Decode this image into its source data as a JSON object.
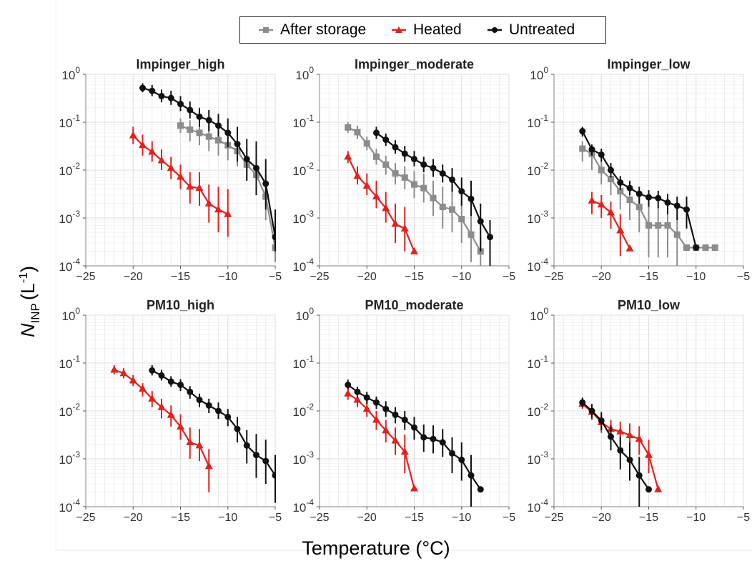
{
  "legend": {
    "items": [
      {
        "label": "After storage",
        "color": "#8c8c8c",
        "marker": "square"
      },
      {
        "label": "Heated",
        "color": "#e0211d",
        "marker": "triangle"
      },
      {
        "label": "Untreated",
        "color": "#111111",
        "marker": "circle"
      }
    ]
  },
  "axes": {
    "ylabel_main": "N",
    "ylabel_sub": "INP",
    "ylabel_unit": "(L",
    "ylabel_exp": "-1",
    "ylabel_close": ")",
    "xlabel": "Temperature (°C)"
  },
  "chart_data": [
    {
      "type": "line",
      "title": "Impinger_high",
      "xlim": [
        -25,
        -5
      ],
      "ylim_log10": [
        -4,
        0
      ],
      "yscale": "log",
      "xticks": [
        -25,
        -20,
        -15,
        -10,
        -5
      ],
      "grid": true,
      "series": [
        {
          "name": "After storage",
          "x": [
            -15,
            -14,
            -13,
            -12,
            -11,
            -10,
            -9,
            -8,
            -7,
            -6,
            -5
          ],
          "y": [
            0.085,
            0.07,
            0.06,
            0.05,
            0.042,
            0.033,
            0.025,
            0.013,
            0.008,
            0.0028,
            0.00024
          ],
          "err_lo": [
            0.06,
            0.04,
            0.033,
            0.025,
            0.02,
            0.016,
            0.012,
            0.006,
            0.003,
            0.0009,
            0.00012
          ],
          "err_hi": [
            0.12,
            0.11,
            0.1,
            0.09,
            0.08,
            0.065,
            0.05,
            0.03,
            0.02,
            0.008,
            0.0005
          ]
        },
        {
          "name": "Heated",
          "x": [
            -20,
            -19,
            -18,
            -17,
            -16,
            -15,
            -14,
            -13,
            -12,
            -11,
            -10
          ],
          "y": [
            0.053,
            0.033,
            0.024,
            0.016,
            0.011,
            0.0072,
            0.0045,
            0.0042,
            0.002,
            0.0015,
            0.0012
          ],
          "err_lo": [
            0.035,
            0.02,
            0.015,
            0.01,
            0.0065,
            0.004,
            0.002,
            0.0018,
            0.0008,
            0.0005,
            0.0004
          ],
          "err_hi": [
            0.08,
            0.055,
            0.04,
            0.027,
            0.019,
            0.013,
            0.009,
            0.009,
            0.005,
            0.0045,
            0.004
          ]
        },
        {
          "name": "Untreated",
          "x": [
            -19,
            -18,
            -17,
            -16,
            -15,
            -14,
            -13,
            -12,
            -11,
            -10,
            -9,
            -8,
            -7,
            -6,
            -5
          ],
          "y": [
            0.52,
            0.45,
            0.35,
            0.32,
            0.24,
            0.18,
            0.13,
            0.11,
            0.085,
            0.06,
            0.035,
            0.017,
            0.011,
            0.0052,
            0.0004
          ],
          "err_lo": [
            0.42,
            0.35,
            0.26,
            0.23,
            0.17,
            0.12,
            0.08,
            0.065,
            0.05,
            0.03,
            0.015,
            0.006,
            0.003,
            0.0015,
            0.0002
          ],
          "err_hi": [
            0.65,
            0.6,
            0.48,
            0.45,
            0.35,
            0.27,
            0.2,
            0.18,
            0.15,
            0.12,
            0.08,
            0.045,
            0.04,
            0.017,
            0.0015
          ]
        }
      ]
    },
    {
      "type": "line",
      "title": "Impinger_moderate",
      "xlim": [
        -25,
        -5
      ],
      "ylim_log10": [
        -4,
        0
      ],
      "yscale": "log",
      "xticks": [
        -25,
        -20,
        -15,
        -10,
        -5
      ],
      "grid": true,
      "series": [
        {
          "name": "After storage",
          "x": [
            -22,
            -21,
            -20,
            -19,
            -18,
            -17,
            -16,
            -15,
            -14,
            -13,
            -12,
            -11,
            -10,
            -9,
            -8
          ],
          "y": [
            0.078,
            0.062,
            0.036,
            0.019,
            0.013,
            0.0085,
            0.007,
            0.005,
            0.0042,
            0.0026,
            0.0017,
            0.0015,
            0.00095,
            0.00045,
            0.0002
          ],
          "err_lo": [
            0.06,
            0.045,
            0.026,
            0.013,
            0.008,
            0.005,
            0.004,
            0.0026,
            0.0021,
            0.0011,
            0.0006,
            0.0005,
            0.0003,
            0.00012,
            0.0001
          ],
          "err_hi": [
            0.1,
            0.085,
            0.05,
            0.028,
            0.02,
            0.014,
            0.012,
            0.0095,
            0.0085,
            0.006,
            0.0045,
            0.004,
            0.003,
            0.0015,
            0.0004
          ]
        },
        {
          "name": "Heated",
          "x": [
            -22,
            -21,
            -20,
            -19,
            -18,
            -17,
            -16,
            -15
          ],
          "y": [
            0.019,
            0.0075,
            0.0047,
            0.0028,
            0.0016,
            0.00075,
            0.0006,
            0.0002
          ],
          "err_lo": [
            0.014,
            0.005,
            0.003,
            0.0016,
            0.0008,
            0.0003,
            0.0002,
            0.00018
          ],
          "err_hi": [
            0.025,
            0.012,
            0.0085,
            0.006,
            0.0035,
            0.002,
            0.0017,
            0.00022
          ]
        },
        {
          "name": "Untreated",
          "x": [
            -19,
            -18,
            -17,
            -16,
            -15,
            -14,
            -13,
            -12,
            -11,
            -10,
            -9,
            -8,
            -7
          ],
          "y": [
            0.06,
            0.043,
            0.03,
            0.022,
            0.017,
            0.013,
            0.011,
            0.0085,
            0.0063,
            0.0036,
            0.0025,
            0.00085,
            0.0004
          ],
          "err_lo": [
            0.045,
            0.032,
            0.022,
            0.015,
            0.012,
            0.009,
            0.0072,
            0.0055,
            0.0035,
            0.0018,
            0.0011,
            0.0002,
            0.0001
          ],
          "err_hi": [
            0.08,
            0.058,
            0.042,
            0.032,
            0.025,
            0.019,
            0.017,
            0.013,
            0.011,
            0.007,
            0.006,
            0.002,
            0.0009
          ]
        }
      ]
    },
    {
      "type": "line",
      "title": "Impinger_low",
      "xlim": [
        -25,
        -5
      ],
      "ylim_log10": [
        -4,
        0
      ],
      "yscale": "log",
      "xticks": [
        -25,
        -20,
        -15,
        -10,
        -5
      ],
      "grid": true,
      "series": [
        {
          "name": "After storage",
          "x": [
            -22,
            -21,
            -20,
            -19,
            -18,
            -17,
            -16,
            -15,
            -14,
            -13,
            -12,
            -11,
            -10,
            -9,
            -8
          ],
          "y": [
            0.028,
            0.022,
            0.01,
            0.0065,
            0.0036,
            0.0024,
            0.0017,
            0.0007,
            0.0007,
            0.0007,
            0.00045,
            0.00024,
            0.00024,
            0.00024,
            0.00024
          ],
          "err_lo": [
            0.015,
            0.01,
            0.005,
            0.003,
            0.0015,
            0.0009,
            0.0005,
            0.00015,
            0.00015,
            0.00015,
            0.0001,
            0.00024,
            0.00024,
            0.00024,
            0.00024
          ],
          "err_hi": [
            0.04,
            0.035,
            0.016,
            0.011,
            0.0065,
            0.0048,
            0.0036,
            0.0017,
            0.0017,
            0.0017,
            0.0012,
            0.00024,
            0.00024,
            0.00024,
            0.00024
          ]
        },
        {
          "name": "Heated",
          "x": [
            -21,
            -20,
            -19,
            -18,
            -17
          ],
          "y": [
            0.0023,
            0.0019,
            0.0013,
            0.00055,
            0.00023
          ],
          "err_lo": [
            0.0012,
            0.001,
            0.0006,
            0.00016,
            0.00021
          ],
          "err_hi": [
            0.0035,
            0.003,
            0.0022,
            0.0012,
            0.00025
          ]
        },
        {
          "name": "Untreated",
          "x": [
            -22,
            -21,
            -20,
            -19,
            -18,
            -17,
            -16,
            -15,
            -14,
            -13,
            -12,
            -11,
            -10
          ],
          "y": [
            0.065,
            0.027,
            0.021,
            0.01,
            0.0055,
            0.0042,
            0.0032,
            0.0027,
            0.0026,
            0.0021,
            0.0018,
            0.0015,
            0.00024
          ],
          "err_lo": [
            0.05,
            0.02,
            0.015,
            0.007,
            0.0039,
            0.003,
            0.002,
            0.0017,
            0.0016,
            0.0012,
            0.0009,
            0.0006,
            0.00022
          ],
          "err_hi": [
            0.08,
            0.034,
            0.028,
            0.014,
            0.0075,
            0.006,
            0.0045,
            0.0038,
            0.0037,
            0.0032,
            0.0028,
            0.0028,
            0.00026
          ]
        }
      ]
    },
    {
      "type": "line",
      "title": "PM10_high",
      "xlim": [
        -25,
        -5
      ],
      "ylim_log10": [
        -4,
        0
      ],
      "yscale": "log",
      "xticks": [
        -25,
        -20,
        -15,
        -10,
        -5
      ],
      "grid": true,
      "series": [
        {
          "name": "Heated",
          "x": [
            -22,
            -21,
            -20,
            -19,
            -18,
            -17,
            -16,
            -15,
            -14,
            -13,
            -12
          ],
          "y": [
            0.072,
            0.061,
            0.043,
            0.029,
            0.018,
            0.012,
            0.0082,
            0.0047,
            0.0022,
            0.0019,
            0.0007
          ],
          "err_lo": [
            0.058,
            0.048,
            0.033,
            0.02,
            0.012,
            0.007,
            0.0047,
            0.0025,
            0.001,
            0.0009,
            0.0002
          ],
          "err_hi": [
            0.09,
            0.078,
            0.056,
            0.038,
            0.026,
            0.018,
            0.013,
            0.0085,
            0.0045,
            0.0042,
            0.0016
          ]
        },
        {
          "name": "Untreated",
          "x": [
            -18,
            -17,
            -16,
            -15,
            -14,
            -13,
            -12,
            -11,
            -10,
            -9,
            -8,
            -7,
            -6,
            -5
          ],
          "y": [
            0.07,
            0.055,
            0.041,
            0.035,
            0.025,
            0.017,
            0.013,
            0.01,
            0.0075,
            0.0042,
            0.0019,
            0.0012,
            0.0009,
            0.00045
          ],
          "err_lo": [
            0.055,
            0.043,
            0.032,
            0.026,
            0.018,
            0.012,
            0.009,
            0.0068,
            0.0048,
            0.0022,
            0.0008,
            0.0004,
            0.0003,
            0.00012
          ],
          "err_hi": [
            0.09,
            0.072,
            0.053,
            0.046,
            0.033,
            0.023,
            0.018,
            0.015,
            0.011,
            0.0075,
            0.004,
            0.0033,
            0.0025,
            0.0012
          ]
        }
      ]
    },
    {
      "type": "line",
      "title": "PM10_moderate",
      "xlim": [
        -25,
        -5
      ],
      "ylim_log10": [
        -4,
        0
      ],
      "yscale": "log",
      "xticks": [
        -25,
        -20,
        -15,
        -10,
        -5
      ],
      "grid": true,
      "series": [
        {
          "name": "Heated",
          "x": [
            -22,
            -21,
            -20,
            -19,
            -18,
            -17,
            -16,
            -15
          ],
          "y": [
            0.023,
            0.017,
            0.011,
            0.0065,
            0.0039,
            0.0024,
            0.0014,
            0.00024
          ],
          "err_lo": [
            0.017,
            0.012,
            0.0075,
            0.004,
            0.0022,
            0.0012,
            0.0005,
            0.00022
          ],
          "err_hi": [
            0.03,
            0.023,
            0.016,
            0.01,
            0.0065,
            0.0045,
            0.0032,
            0.00026
          ]
        },
        {
          "name": "Untreated",
          "x": [
            -22,
            -21,
            -20,
            -19,
            -18,
            -17,
            -16,
            -15,
            -14,
            -13,
            -12,
            -11,
            -10,
            -9,
            -8
          ],
          "y": [
            0.035,
            0.025,
            0.019,
            0.015,
            0.011,
            0.0083,
            0.0065,
            0.0045,
            0.0028,
            0.0026,
            0.0022,
            0.0013,
            0.00095,
            0.00045,
            0.00023
          ],
          "err_lo": [
            0.028,
            0.019,
            0.014,
            0.011,
            0.0075,
            0.0055,
            0.004,
            0.0025,
            0.0014,
            0.0013,
            0.0011,
            0.0005,
            0.00035,
            0.0001,
            0.00021
          ],
          "err_hi": [
            0.045,
            0.032,
            0.025,
            0.02,
            0.016,
            0.012,
            0.01,
            0.0075,
            0.0052,
            0.005,
            0.0042,
            0.0028,
            0.0022,
            0.0012,
            0.00025
          ]
        }
      ]
    },
    {
      "type": "line",
      "title": "PM10_low",
      "xlim": [
        -25,
        -5
      ],
      "ylim_log10": [
        -4,
        0
      ],
      "yscale": "log",
      "xticks": [
        -25,
        -20,
        -15,
        -10,
        -5
      ],
      "grid": true,
      "series": [
        {
          "name": "Heated",
          "x": [
            -22,
            -21,
            -20,
            -19,
            -18,
            -17,
            -16,
            -15,
            -14
          ],
          "y": [
            0.014,
            0.0095,
            0.0058,
            0.0042,
            0.0037,
            0.0031,
            0.0026,
            0.0012,
            0.00023
          ],
          "err_lo": [
            0.011,
            0.0065,
            0.0035,
            0.0023,
            0.002,
            0.0016,
            0.0012,
            0.0005,
            0.00021
          ],
          "err_hi": [
            0.018,
            0.013,
            0.0085,
            0.0065,
            0.006,
            0.0055,
            0.0048,
            0.0025,
            0.00025
          ]
        },
        {
          "name": "Untreated",
          "x": [
            -22,
            -21,
            -20,
            -19,
            -18,
            -17,
            -16,
            -15
          ],
          "y": [
            0.015,
            0.01,
            0.0063,
            0.0029,
            0.0015,
            0.00095,
            0.00045,
            0.00023
          ],
          "err_lo": [
            0.012,
            0.007,
            0.004,
            0.0015,
            0.0006,
            0.00035,
            0.0001,
            0.00021
          ],
          "err_hi": [
            0.019,
            0.014,
            0.0095,
            0.005,
            0.0029,
            0.0022,
            0.0011,
            0.00025
          ]
        }
      ]
    }
  ]
}
